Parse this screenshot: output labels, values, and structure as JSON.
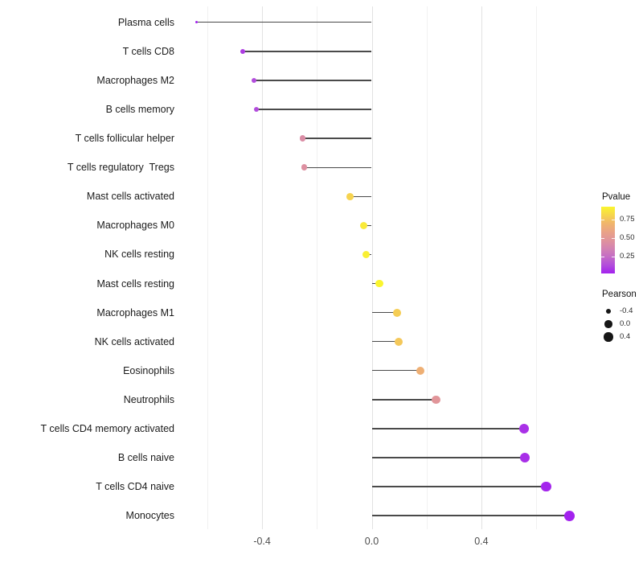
{
  "chart_data": {
    "type": "scatter",
    "style": "lollipop",
    "orientation": "horizontal",
    "title": "",
    "xlabel": "",
    "ylabel": "",
    "categories": [
      "Plasma cells",
      "T cells CD8",
      "Macrophages M2",
      "B cells memory",
      "T cells follicular helper",
      "T cells regulatory  Tregs",
      "Mast cells activated",
      "Macrophages M0",
      "NK cells resting",
      "Mast cells resting",
      "Macrophages M1",
      "NK cells activated",
      "Eosinophils",
      "Neutrophils",
      "T cells CD4 memory activated",
      "B cells naive",
      "T cells CD4 naive",
      "Monocytes"
    ],
    "series": [
      {
        "name": "Pearson",
        "values": [
          -0.64,
          -0.47,
          -0.43,
          -0.42,
          -0.252,
          -0.246,
          -0.078,
          -0.029,
          -0.021,
          0.028,
          0.092,
          0.098,
          0.177,
          0.235,
          0.555,
          0.558,
          0.637,
          0.722
        ]
      },
      {
        "name": "Pvalue",
        "values": [
          0.01,
          0.09,
          0.13,
          0.13,
          0.42,
          0.44,
          0.8,
          0.88,
          0.9,
          0.92,
          0.78,
          0.76,
          0.66,
          0.48,
          0.06,
          0.055,
          0.03,
          0.02
        ]
      }
    ],
    "baseline": 0,
    "x_axis": {
      "tick_labels": [
        "-0.4",
        "0.0",
        "0.4"
      ],
      "tick_values": [
        -0.4,
        0.0,
        0.4
      ],
      "minor_gridlines": [
        -0.6,
        -0.2,
        0.2,
        0.6
      ],
      "range": [
        -0.7,
        0.78
      ],
      "grid": "vertical-only"
    },
    "legend": {
      "position": "right",
      "pvalue": {
        "title": "Pvalue",
        "tick_labels": [
          "0.75",
          "0.50",
          "0.25"
        ],
        "tick_values": [
          0.75,
          0.5,
          0.25
        ],
        "range": [
          0.02,
          0.92
        ],
        "color_low": "#A322EE",
        "color_mid": "#E0949B",
        "color_high": "#FAF52E"
      },
      "pearson": {
        "title": "Pearson",
        "tick_labels": [
          "-0.4",
          "0.0",
          "0.4"
        ],
        "tick_values": [
          -0.4,
          0.0,
          0.4
        ],
        "dot_color": "#161616"
      }
    }
  }
}
